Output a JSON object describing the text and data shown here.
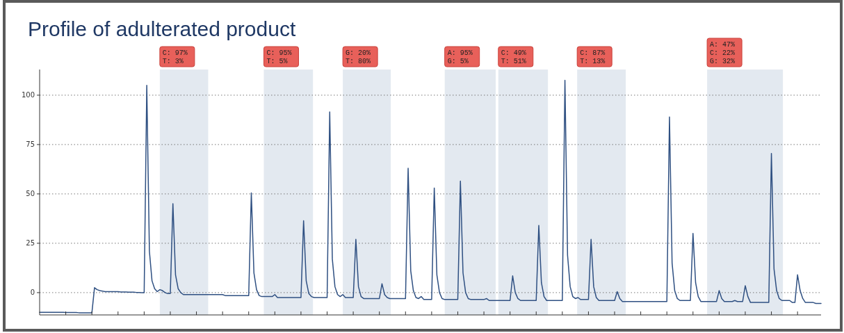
{
  "chart_data": {
    "type": "line",
    "title": "Profile of adulterated product",
    "categories": [
      null,
      null,
      null,
      null,
      null,
      null,
      null,
      null,
      null,
      null,
      null,
      null,
      null,
      null,
      null,
      null,
      null,
      null,
      null,
      null,
      null,
      null,
      null,
      null,
      null,
      null,
      null,
      null,
      null,
      null,
      null,
      null,
      null,
      null,
      null,
      null,
      null,
      null,
      null,
      null,
      null,
      null,
      null,
      null,
      null,
      null,
      null,
      null,
      null,
      null,
      null,
      null,
      null,
      null,
      null,
      null,
      null,
      null,
      null,
      null,
      null,
      null,
      null,
      null,
      null,
      null,
      null,
      null,
      null,
      null,
      null,
      null,
      null,
      null,
      null,
      null,
      null,
      null,
      null,
      null,
      null,
      null,
      null,
      null,
      null,
      null,
      null,
      null,
      null,
      null,
      null,
      null,
      null,
      null,
      null,
      null,
      null,
      null,
      null,
      null,
      null,
      null,
      null,
      null,
      null,
      null,
      null,
      null,
      null,
      null,
      null,
      null,
      null,
      null,
      null,
      null,
      null,
      null,
      null,
      null,
      null,
      null,
      null,
      null,
      null,
      null,
      null,
      null,
      null,
      null,
      null,
      null,
      null,
      null,
      null,
      null,
      null,
      null,
      null,
      null,
      null,
      null,
      null,
      null,
      null,
      null,
      null,
      null,
      null,
      null,
      null,
      null,
      null,
      null,
      null,
      null,
      null,
      null,
      null,
      null,
      null,
      null,
      null,
      null,
      null,
      null,
      null,
      null,
      null,
      null,
      null,
      null,
      null,
      null,
      null,
      null,
      null,
      null,
      null,
      null,
      null,
      null,
      null,
      null,
      null,
      null,
      null,
      null,
      null,
      null,
      null,
      null,
      null,
      null,
      null,
      null,
      null,
      null,
      null,
      null,
      null,
      null,
      null,
      null,
      null,
      null,
      null,
      null,
      null,
      null,
      null,
      null,
      null,
      null,
      null,
      null,
      null,
      null,
      null,
      null,
      null,
      null,
      null,
      null,
      null,
      null,
      null,
      null,
      null,
      null,
      null,
      null,
      null,
      null,
      null,
      null,
      null,
      null,
      null,
      null,
      null,
      null,
      null,
      null,
      null,
      null,
      null,
      null,
      null,
      null,
      null,
      null,
      null,
      null,
      null,
      null,
      null,
      null,
      null,
      null,
      null,
      null,
      null,
      null,
      null,
      null,
      null,
      null,
      null,
      null,
      null,
      null,
      null,
      null,
      null,
      null,
      null,
      null,
      null,
      null,
      null,
      null,
      null,
      null,
      null,
      null,
      null,
      null,
      null,
      null,
      null,
      null,
      null,
      null,
      null,
      null,
      null,
      null,
      null,
      null
    ],
    "series": [
      {
        "color": "#2f5082",
        "values": [
          -10,
          -10,
          -10,
          -10,
          -10,
          -10,
          -10,
          -10,
          -10,
          -10,
          -10.1,
          -10.1,
          -10.1,
          -10.1,
          -10.1,
          -10.2,
          -10.2,
          -10.2,
          -10.2,
          -10.2,
          -10.2,
          2.5,
          1.5,
          1,
          0.8,
          0.5,
          0.5,
          0.5,
          0.5,
          0.5,
          0.5,
          0.3,
          0.3,
          0.3,
          0.2,
          0.2,
          0.2,
          0.1,
          0.1,
          0,
          0,
          105,
          21,
          6,
          2,
          0.5,
          1.5,
          1,
          0,
          -0.5,
          -0.5,
          45,
          9,
          2,
          0,
          -1,
          -1,
          -1,
          -1,
          -1,
          -1,
          -1,
          -1,
          -1,
          -1,
          -1,
          -1,
          -1,
          -1,
          -1,
          -1,
          -1.5,
          -1.5,
          -1.5,
          -1.5,
          -1.5,
          -1.5,
          -1.5,
          -1.5,
          -1.5,
          -1.5,
          50.5,
          10,
          1.5,
          -1.5,
          -2,
          -2,
          -2,
          -2,
          -2,
          -1,
          -2.5,
          -2.5,
          -2.5,
          -2.5,
          -2.5,
          -2.5,
          -2.5,
          -2.5,
          -2.5,
          -2.5,
          36.4,
          6,
          -0.5,
          -2,
          -2.5,
          -2.5,
          -2.5,
          -2.5,
          -2.5,
          -2.5,
          91.5,
          17,
          3,
          -1,
          -2,
          -1,
          -2.5,
          -2.5,
          -2.5,
          -2.5,
          27,
          3,
          -2,
          -3,
          -3,
          -3,
          -3,
          -3,
          -3,
          -3,
          4.5,
          -1,
          -2.5,
          -3,
          -3,
          -3,
          -3,
          -3,
          -3,
          -3,
          63,
          11,
          1,
          -2.5,
          -3,
          -2,
          -3.5,
          -3.5,
          -3.5,
          -3.5,
          53,
          9,
          0,
          -3,
          -3.5,
          -3.5,
          -3.5,
          -3.5,
          -3.5,
          -3.5,
          56.5,
          10,
          0,
          -3,
          -3.5,
          -3.5,
          -3.5,
          -3.5,
          -3.5,
          -3.5,
          -3,
          -4,
          -4,
          -4,
          -4,
          -4,
          -4,
          -4,
          -4,
          -4,
          8.5,
          0,
          -3,
          -4,
          -4,
          -4,
          -4,
          -4,
          -4,
          -4,
          34,
          5,
          -2,
          -4,
          -4,
          -4,
          -4,
          -4,
          -4,
          -4,
          107.5,
          19,
          3,
          -2,
          -3,
          -2.5,
          -3.5,
          -3.5,
          -3.5,
          -3.5,
          27,
          3,
          -2.5,
          -4,
          -4,
          -4,
          -4,
          -4,
          -4,
          -4,
          0.5,
          -3,
          -4.5,
          -4.5,
          -4.5,
          -4.5,
          -4.5,
          -4.5,
          -4.5,
          -4.5,
          -4.5,
          -4.5,
          -4.5,
          -4.5,
          -4.5,
          -4.5,
          -4.5,
          -4.5,
          -4.5,
          -4.5,
          89,
          15,
          1,
          -3,
          -4,
          -4,
          -4,
          -4,
          -4,
          30,
          5,
          -2,
          -4.5,
          -4.5,
          -4.5,
          -4.5,
          -4.5,
          -4.5,
          -4.5,
          1,
          -3,
          -4.5,
          -4.5,
          -4.5,
          -4.5,
          -4,
          -4.5,
          -4.5,
          -4.5,
          3.5,
          -2,
          -5,
          -5,
          -5,
          -5,
          -5,
          -5,
          -5,
          -5,
          70.5,
          12,
          1,
          -3,
          -4,
          -4,
          -4,
          -4,
          -5,
          -5,
          9,
          1,
          -3,
          -5,
          -5,
          -5,
          -5,
          -5.5,
          -5.5,
          -5.5
        ]
      }
    ],
    "ylim": [
      -11.3,
      113
    ],
    "yticks": [
      0,
      25,
      50,
      75,
      100
    ],
    "grid": "y",
    "tick_labels": "y",
    "line_style": "solid",
    "marker": "none",
    "annotations": [
      "C: 97%\nT: 3%",
      "C: 95%\nT: 5%",
      "G: 20%\nT: 80%",
      "A: 95%\nG: 5%",
      "C: 49%\nT: 51%",
      "C: 87%\nT: 13%",
      "A: 47%\nC: 22%\nG: 32%"
    ]
  }
}
